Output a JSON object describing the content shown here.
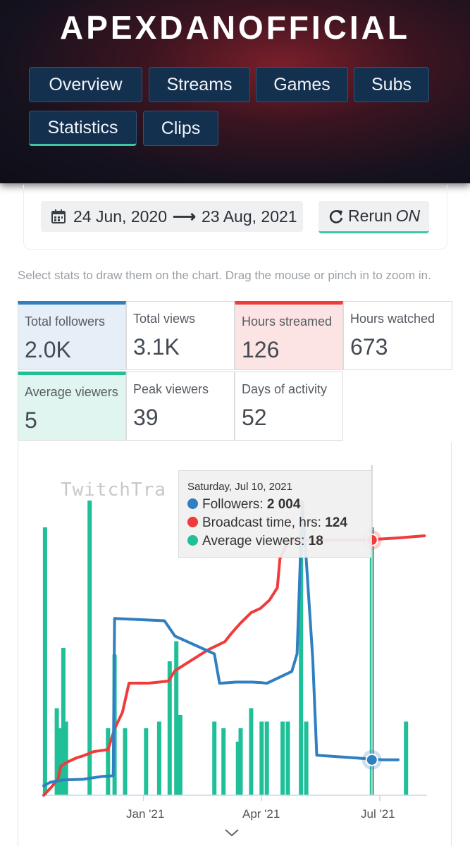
{
  "channel": {
    "name": "APEXDANOFFICIAL"
  },
  "nav": {
    "overview": "Overview",
    "streams": "Streams",
    "games": "Games",
    "subs": "Subs",
    "statistics": "Statistics",
    "clips": "Clips"
  },
  "date_range": {
    "start": "24 Jun, 2020",
    "end": "23 Aug, 2021"
  },
  "rerun": {
    "label": "Rerun",
    "state": "ON"
  },
  "hint": "Select stats to draw them on the chart. Drag the mouse or pinch in to zoom in.",
  "stats": {
    "total_followers": {
      "label": "Total followers",
      "value": "2.0K"
    },
    "total_views": {
      "label": "Total views",
      "value": "3.1K"
    },
    "hours_streamed": {
      "label": "Hours streamed",
      "value": "126"
    },
    "hours_watched": {
      "label": "Hours watched",
      "value": "673"
    },
    "average_viewers": {
      "label": "Average viewers",
      "value": "5"
    },
    "peak_viewers": {
      "label": "Peak viewers",
      "value": "39"
    },
    "days_of_activity": {
      "label": "Days of activity",
      "value": "52"
    }
  },
  "colors": {
    "followers": "#2f7fc1",
    "broadcast": "#f03b3b",
    "viewers": "#1fbf98",
    "nav_bg": "#13304f",
    "accent": "#3ec7a6"
  },
  "watermark": "TwitchTra",
  "tooltip": {
    "date": "Saturday, Jul 10, 2021",
    "followers_label": "Followers:",
    "followers_value": "2 004",
    "broadcast_label": "Broadcast time, hrs:",
    "broadcast_value": "124",
    "viewers_label": "Average viewers:",
    "viewers_value": "18"
  },
  "chart_data": {
    "type": "bar+line",
    "x_ticks": [
      "Jan '21",
      "Apr '21",
      "Jul '21"
    ],
    "x_range_days": [
      0,
      292
    ],
    "tick_days": [
      76,
      166,
      256
    ],
    "series": [
      {
        "name": "Average viewers",
        "type": "bar",
        "axis_max": 22,
        "points": [
          [
            1,
            20.0
          ],
          [
            10,
            6.5
          ],
          [
            12,
            5.0
          ],
          [
            15,
            11.0
          ],
          [
            17,
            5.5
          ],
          [
            35,
            22.0
          ],
          [
            49,
            5.0
          ],
          [
            54,
            10.5
          ],
          [
            62,
            5.0
          ],
          [
            78,
            5.0
          ],
          [
            88,
            5.5
          ],
          [
            96,
            10.0
          ],
          [
            101,
            11.5
          ],
          [
            104,
            6.0
          ],
          [
            130,
            5.5
          ],
          [
            137,
            5.0
          ],
          [
            148,
            4.0
          ],
          [
            150,
            5.0
          ],
          [
            158,
            6.5
          ],
          [
            166,
            5.5
          ],
          [
            170,
            5.5
          ],
          [
            182,
            5.5
          ],
          [
            186,
            5.5
          ],
          [
            196,
            19.5
          ],
          [
            200,
            5.5
          ],
          [
            250,
            20.0
          ],
          [
            276,
            5.5
          ]
        ]
      },
      {
        "name": "Followers",
        "type": "line",
        "axis_max": 2500,
        "points": [
          [
            0,
            80
          ],
          [
            5,
            110
          ],
          [
            15,
            130
          ],
          [
            30,
            135
          ],
          [
            45,
            160
          ],
          [
            53,
            165
          ],
          [
            54,
            1500
          ],
          [
            92,
            1480
          ],
          [
            100,
            1350
          ],
          [
            130,
            1200
          ],
          [
            134,
            950
          ],
          [
            146,
            960
          ],
          [
            159,
            960
          ],
          [
            166,
            955
          ],
          [
            170,
            950
          ],
          [
            189,
            1050
          ],
          [
            193,
            1200
          ],
          [
            197,
            2490
          ],
          [
            200,
            2000
          ],
          [
            205,
            1150
          ],
          [
            208,
            340
          ],
          [
            258,
            300
          ],
          [
            270,
            300
          ]
        ]
      },
      {
        "name": "Broadcast time, hrs",
        "type": "line",
        "axis_max": 142,
        "points": [
          [
            0,
            0
          ],
          [
            6,
            4
          ],
          [
            11,
            8
          ],
          [
            13,
            14
          ],
          [
            18,
            16
          ],
          [
            25,
            18
          ],
          [
            30,
            19
          ],
          [
            38,
            21
          ],
          [
            49,
            22
          ],
          [
            54,
            32
          ],
          [
            60,
            40
          ],
          [
            65,
            54
          ],
          [
            80,
            54
          ],
          [
            95,
            55
          ],
          [
            100,
            60
          ],
          [
            125,
            70
          ],
          [
            138,
            74
          ],
          [
            143,
            78
          ],
          [
            150,
            83
          ],
          [
            158,
            88
          ],
          [
            165,
            90
          ],
          [
            172,
            94
          ],
          [
            178,
            100
          ],
          [
            180,
            114
          ],
          [
            186,
            122
          ],
          [
            205,
            123
          ],
          [
            245,
            123
          ],
          [
            270,
            124
          ],
          [
            290,
            125
          ]
        ]
      }
    ]
  }
}
